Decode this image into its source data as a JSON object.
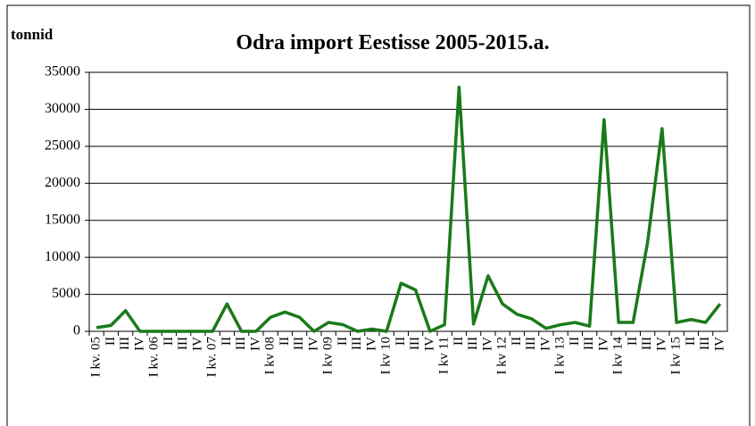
{
  "chart_data": {
    "type": "line",
    "title": "Odra import Eestisse 2005-2015.a.",
    "y_label": "tonnid",
    "categories": [
      "I kv. 05",
      "II",
      "III",
      "IV",
      "I kv. 06",
      "II",
      "III",
      "IV",
      "I kv. 07",
      "II",
      "III",
      "IV",
      "I kv 08",
      "II",
      "III",
      "IV",
      "I kv 09",
      "II",
      "III",
      "IV",
      "I kv 10",
      "II",
      "III",
      "IV",
      "I kv 11",
      "II",
      "III",
      "IV",
      "I kv 12",
      "II",
      "III",
      "IV",
      "I kv 13",
      "II",
      "III",
      "IV",
      "I kv 14",
      "II",
      "III",
      "IV",
      "I kv 15",
      "II",
      "III",
      "IV"
    ],
    "series": [
      {
        "name": "Odra import",
        "color": "#1a7a1a",
        "values": [
          500,
          800,
          2800,
          0,
          0,
          0,
          0,
          0,
          0,
          3700,
          0,
          0,
          1900,
          2600,
          1900,
          0,
          1200,
          900,
          0,
          300,
          0,
          6500,
          5600,
          0,
          900,
          33000,
          1000,
          7500,
          3700,
          2300,
          1700,
          400,
          900,
          1200,
          700,
          28600,
          1200,
          1200,
          12000,
          27400,
          1200,
          1600,
          1200,
          3700
        ]
      }
    ],
    "ylim": [
      0,
      35000
    ],
    "yticks": [
      0,
      5000,
      10000,
      15000,
      20000,
      25000,
      30000,
      35000
    ],
    "grid": true
  }
}
